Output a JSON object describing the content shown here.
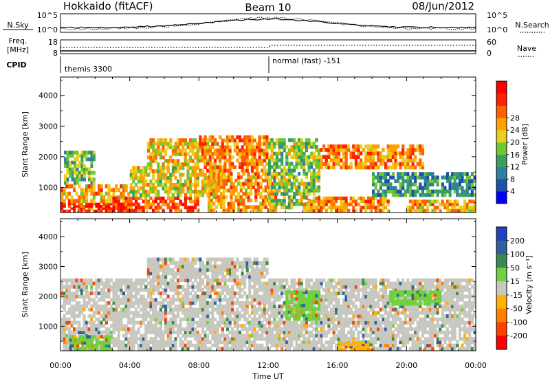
{
  "header": {
    "station": "Hokkaido (fitACF)",
    "beam": "Beam 10",
    "date": "08/Jun/2012"
  },
  "strip_nsky": {
    "left_label": "N.Sky",
    "right_label": "N.Search",
    "left_ticks": [
      "10^5",
      "10^0"
    ],
    "right_ticks": [
      "10^5",
      "10^0"
    ]
  },
  "strip_freq": {
    "left_label_line1": "Freq.",
    "left_label_line2": "[MHz]",
    "right_label": "Nave",
    "left_ticks": [
      "18",
      "8"
    ],
    "right_ticks": [
      "60",
      "0"
    ]
  },
  "strip_cpid": {
    "label": "CPID",
    "segments": [
      {
        "start_ut": "00:00",
        "end_ut": "12:00",
        "label": "themis 3300"
      },
      {
        "start_ut": "12:00",
        "end_ut": "24:00",
        "label": "normal (fast) -151"
      }
    ]
  },
  "x_axis": {
    "label": "Time UT",
    "ticks": [
      "00:00",
      "04:00",
      "08:00",
      "12:00",
      "16:00",
      "20:00",
      "00:00"
    ]
  },
  "chart_data": [
    {
      "type": "heatmap",
      "title": "",
      "xlabel": "Time UT",
      "ylabel": "Slant Range [km]",
      "x_unit": "hour UT",
      "xlim": [
        0,
        24
      ],
      "ylim": [
        180,
        4600
      ],
      "yticks": [
        1000,
        2000,
        3000,
        4000
      ],
      "colorbar": {
        "label": "Power [dB]",
        "ticks": [
          "4",
          "8",
          "12",
          "16",
          "20",
          "24",
          "28"
        ],
        "levels": [
          0,
          4,
          8,
          12,
          16,
          20,
          24,
          28,
          32
        ],
        "colors": [
          "#0000ff",
          "#1f50b0",
          "#2f7fa0",
          "#3aa060",
          "#70c830",
          "#e8d020",
          "#ffa000",
          "#ff6000",
          "#ff2000",
          "#ff0000"
        ]
      },
      "regions": [
        {
          "t0": 0.0,
          "t1": 4.0,
          "r0": 200,
          "r1": 500,
          "value": 30
        },
        {
          "t0": 0.0,
          "t1": 4.0,
          "r0": 500,
          "r1": 1100,
          "value": 22
        },
        {
          "t0": 0.2,
          "t1": 2.0,
          "r0": 1100,
          "r1": 2200,
          "value": 12
        },
        {
          "t0": 3.0,
          "t1": 8.0,
          "r0": 200,
          "r1": 700,
          "value": 28
        },
        {
          "t0": 4.0,
          "t1": 9.0,
          "r0": 700,
          "r1": 1700,
          "value": 18
        },
        {
          "t0": 5.0,
          "t1": 9.0,
          "r0": 1700,
          "r1": 2600,
          "value": 20
        },
        {
          "t0": 8.5,
          "t1": 12.5,
          "r0": 200,
          "r1": 1500,
          "value": 22
        },
        {
          "t0": 8.0,
          "t1": 12.0,
          "r0": 1500,
          "r1": 2700,
          "value": 24
        },
        {
          "t0": 12.0,
          "t1": 15.0,
          "r0": 300,
          "r1": 2600,
          "value": 14
        },
        {
          "t0": 14.0,
          "t1": 19.0,
          "r0": 200,
          "r1": 700,
          "value": 24
        },
        {
          "t0": 15.0,
          "t1": 21.0,
          "r0": 1600,
          "r1": 2400,
          "value": 24
        },
        {
          "t0": 18.0,
          "t1": 24.0,
          "r0": 700,
          "r1": 1500,
          "value": 8
        },
        {
          "t0": 20.0,
          "t1": 24.0,
          "r0": 200,
          "r1": 600,
          "value": 22
        }
      ]
    },
    {
      "type": "heatmap",
      "title": "",
      "xlabel": "Time UT",
      "ylabel": "Slant Range [km]",
      "x_unit": "hour UT",
      "xlim": [
        0,
        24
      ],
      "ylim": [
        180,
        4600
      ],
      "yticks": [
        1000,
        2000,
        3000,
        4000
      ],
      "colorbar": {
        "label": "Velocity [m s⁻¹]",
        "ticks": [
          "200",
          "100",
          "50",
          "15",
          "-15",
          "-50",
          "-100",
          "-200"
        ],
        "levels": [
          250,
          200,
          100,
          50,
          15,
          -15,
          -50,
          -100,
          -200,
          -250
        ],
        "colors": [
          "#2040c0",
          "#3060a0",
          "#3c8a50",
          "#70d040",
          "#c8c8c0",
          "#ffb000",
          "#ff8000",
          "#ff4000",
          "#ff0000"
        ]
      },
      "regions": [
        {
          "t0": 0.0,
          "t1": 24.0,
          "r0": 200,
          "r1": 2600,
          "value": 0
        },
        {
          "t0": 5.0,
          "t1": 12.0,
          "r0": 2600,
          "r1": 3300,
          "value": 0
        },
        {
          "t0": 0.5,
          "t1": 3.0,
          "r0": 200,
          "r1": 700,
          "value": 30
        },
        {
          "t0": 13.0,
          "t1": 15.0,
          "r0": 1200,
          "r1": 2200,
          "value": 30
        },
        {
          "t0": 19.0,
          "t1": 22.0,
          "r0": 1700,
          "r1": 2200,
          "value": 30
        },
        {
          "t0": 16.0,
          "t1": 18.0,
          "r0": 200,
          "r1": 500,
          "value": -30
        }
      ]
    }
  ]
}
